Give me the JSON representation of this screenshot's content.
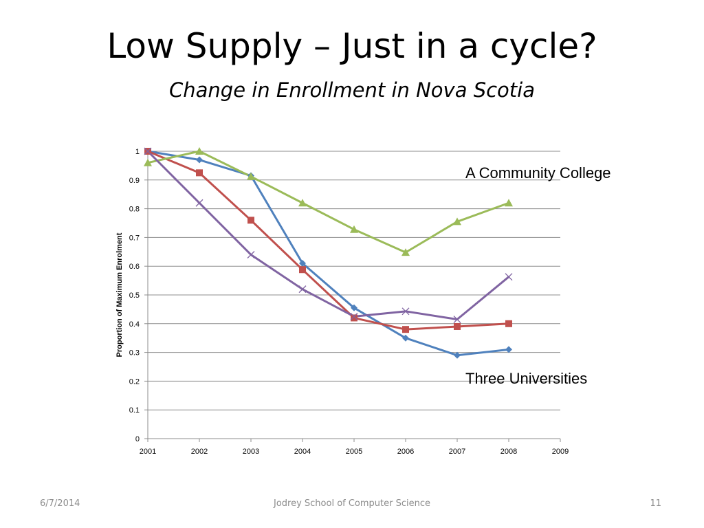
{
  "slide": {
    "title": "Low Supply – Just in a cycle?",
    "subtitle": "Change in Enrollment in Nova Scotia",
    "footer": {
      "date": "6/7/2014",
      "center": "Jodrey School of Computer Science",
      "page": "11"
    }
  },
  "chart_data": {
    "type": "line",
    "title": "",
    "xlabel": "",
    "ylabel": "Proportion of Maximum Enrolment",
    "x": [
      2001,
      2002,
      2003,
      2004,
      2005,
      2006,
      2007,
      2008
    ],
    "xlim": [
      2001,
      2009
    ],
    "xticks": [
      "2001",
      "2002",
      "2003",
      "2004",
      "2005",
      "2006",
      "2007",
      "2008",
      "2009"
    ],
    "ylim": [
      0,
      1
    ],
    "yticks": [
      "0",
      "0.1",
      "0.2",
      "0.3",
      "0.4",
      "0.5",
      "0.6",
      "0.7",
      "0.8",
      "0.9",
      "1"
    ],
    "grid": "horizontal",
    "legend": "none",
    "annotations": [
      "A Community College",
      "Three Universities"
    ],
    "series": [
      {
        "color": "#4f81bd",
        "marker": "diamond",
        "values": [
          1.0,
          0.97,
          0.915,
          0.61,
          0.455,
          0.35,
          0.29,
          0.31
        ]
      },
      {
        "color": "#c0504d",
        "marker": "square",
        "values": [
          1.0,
          0.925,
          0.76,
          0.588,
          0.42,
          0.38,
          0.39,
          0.4
        ]
      },
      {
        "color": "#9bbb59",
        "marker": "triangle",
        "values": [
          0.96,
          1.0,
          0.912,
          0.82,
          0.728,
          0.648,
          0.755,
          0.82
        ]
      },
      {
        "color": "#8064a2",
        "marker": "x",
        "values": [
          1.0,
          0.82,
          0.64,
          0.52,
          0.425,
          0.443,
          0.415,
          0.563
        ]
      }
    ]
  }
}
